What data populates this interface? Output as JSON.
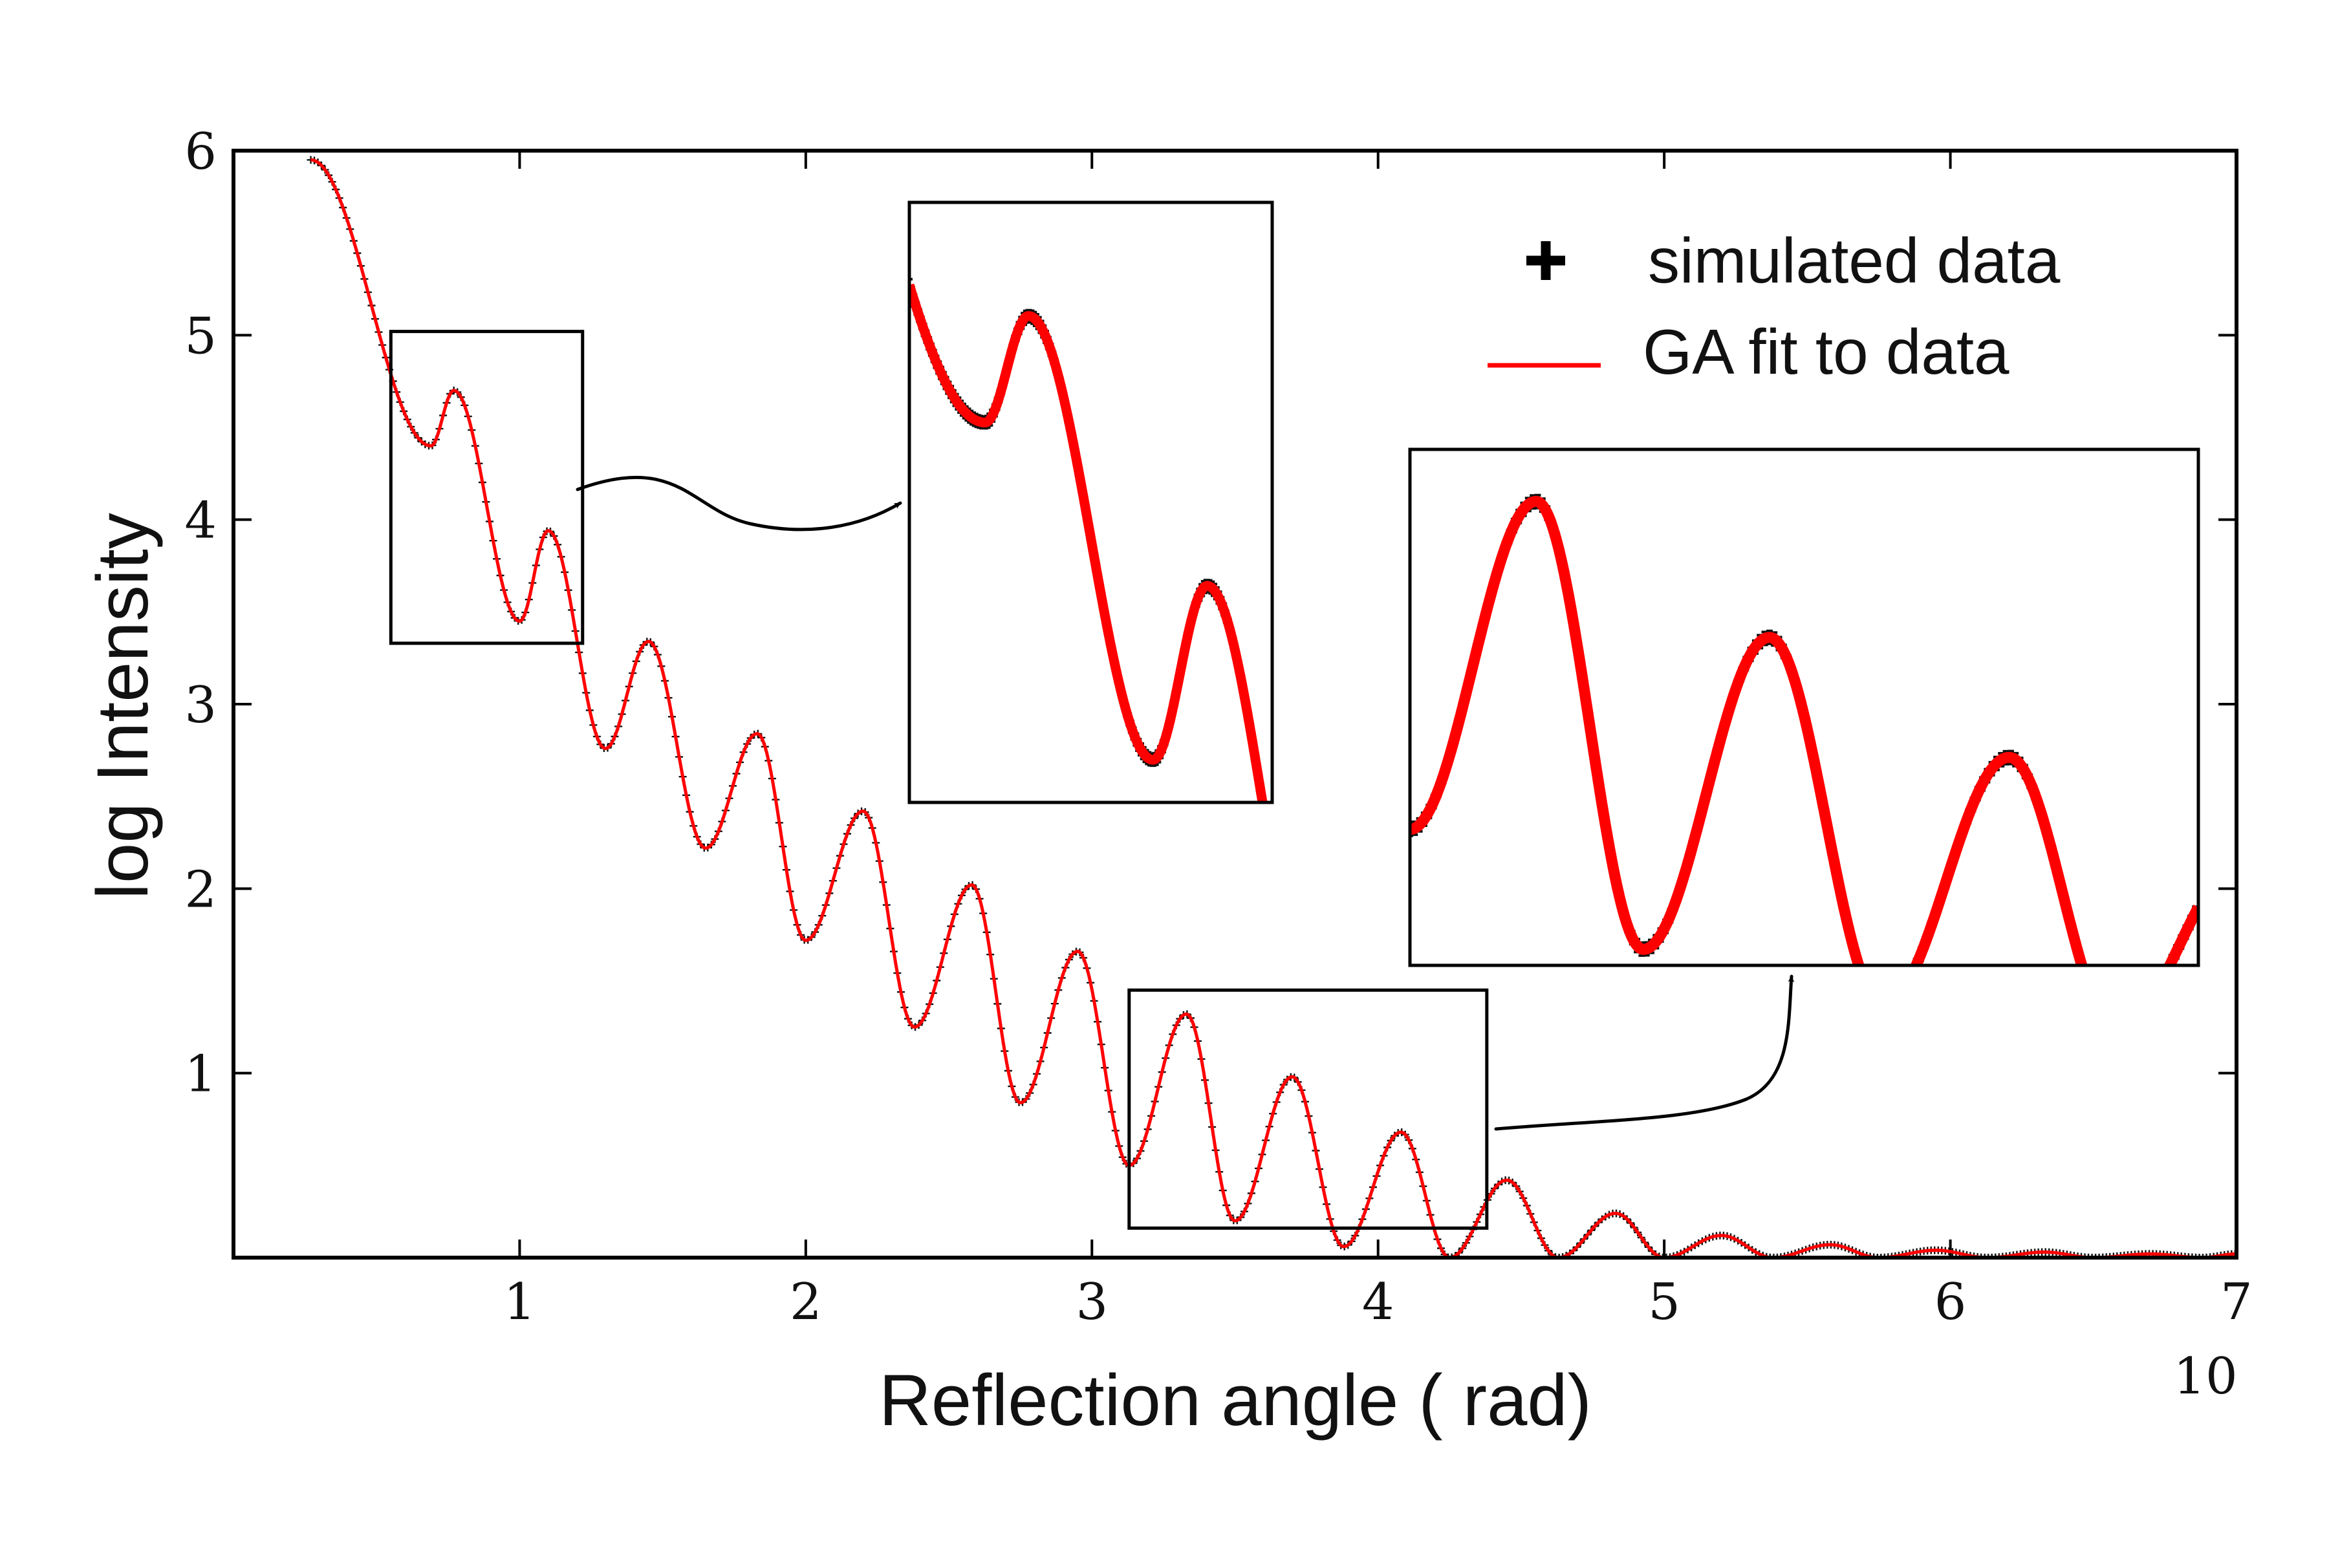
{
  "chart_data": {
    "type": "line",
    "xlabel": "Reflection angle ( rad)",
    "ylabel": "log  Intensity",
    "x_scale_note": "10",
    "xlim": [
      0,
      7
    ],
    "ylim": [
      0,
      6
    ],
    "x_ticks": [
      "1",
      "2",
      "3",
      "4",
      "5",
      "6",
      "7"
    ],
    "y_ticks": [
      "1",
      "2",
      "3",
      "4",
      "5",
      "6"
    ],
    "legend_position": "top-right",
    "series": [
      {
        "name": "simulated data",
        "style": "markers",
        "marker": "+",
        "color": "#000000"
      },
      {
        "name": "GA fit to data",
        "style": "line",
        "color": "#ff0000"
      }
    ],
    "minima": [
      {
        "x": 0.69,
        "y": 4.4
      },
      {
        "x": 1.0,
        "y": 3.45
      },
      {
        "x": 1.3,
        "y": 2.76
      },
      {
        "x": 1.65,
        "y": 2.22
      },
      {
        "x": 2.0,
        "y": 1.72
      },
      {
        "x": 2.38,
        "y": 1.25
      },
      {
        "x": 2.75,
        "y": 0.84
      },
      {
        "x": 3.13,
        "y": 0.5
      },
      {
        "x": 3.5,
        "y": 0.2
      },
      {
        "x": 3.88,
        "y": 0.06
      },
      {
        "x": 4.25,
        "y": 0.0
      },
      {
        "x": 4.63,
        "y": 0.0
      },
      {
        "x": 5.0,
        "y": 0.0
      },
      {
        "x": 5.38,
        "y": 0.0
      },
      {
        "x": 5.75,
        "y": 0.0
      },
      {
        "x": 6.13,
        "y": 0.0
      },
      {
        "x": 6.5,
        "y": 0.0
      },
      {
        "x": 6.88,
        "y": 0.0
      }
    ],
    "maxima": [
      {
        "x": 0.27,
        "y": 5.95
      },
      {
        "x": 0.77,
        "y": 4.7
      },
      {
        "x": 1.1,
        "y": 3.94
      },
      {
        "x": 1.45,
        "y": 3.34
      },
      {
        "x": 1.83,
        "y": 2.84
      },
      {
        "x": 2.2,
        "y": 2.42
      },
      {
        "x": 2.58,
        "y": 2.02
      },
      {
        "x": 2.95,
        "y": 1.66
      },
      {
        "x": 3.33,
        "y": 1.32
      },
      {
        "x": 3.7,
        "y": 0.98
      },
      {
        "x": 4.08,
        "y": 0.68
      },
      {
        "x": 4.45,
        "y": 0.42
      },
      {
        "x": 4.83,
        "y": 0.24
      },
      {
        "x": 5.2,
        "y": 0.12
      },
      {
        "x": 5.58,
        "y": 0.07
      },
      {
        "x": 5.95,
        "y": 0.04
      },
      {
        "x": 6.33,
        "y": 0.03
      },
      {
        "x": 6.7,
        "y": 0.02
      }
    ],
    "insets": [
      {
        "name": "inset-1",
        "source_xlim": [
          0.55,
          1.22
        ],
        "source_ylim": [
          3.33,
          5.02
        ]
      },
      {
        "name": "inset-2",
        "source_xlim": [
          3.13,
          4.38
        ],
        "source_ylim": [
          0.16,
          1.45
        ]
      }
    ]
  }
}
